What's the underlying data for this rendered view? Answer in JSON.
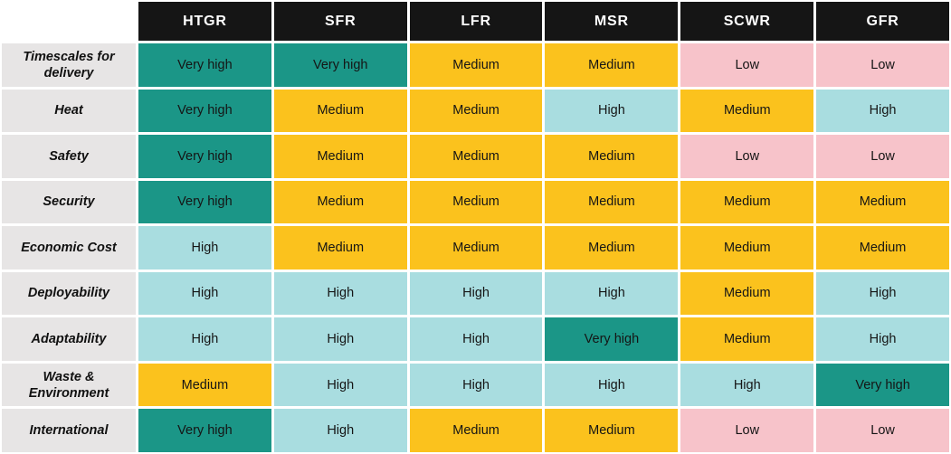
{
  "chart_data": {
    "type": "heatmap",
    "columns": [
      "HTGR",
      "SFR",
      "LFR",
      "MSR",
      "SCWR",
      "GFR"
    ],
    "rows": [
      {
        "label": "Timescales for delivery",
        "values": [
          "Very high",
          "Very high",
          "Medium",
          "Medium",
          "Low",
          "Low"
        ]
      },
      {
        "label": "Heat",
        "values": [
          "Very high",
          "Medium",
          "Medium",
          "High",
          "Medium",
          "High"
        ]
      },
      {
        "label": "Safety",
        "values": [
          "Very high",
          "Medium",
          "Medium",
          "Medium",
          "Low",
          "Low"
        ]
      },
      {
        "label": "Security",
        "values": [
          "Very high",
          "Medium",
          "Medium",
          "Medium",
          "Medium",
          "Medium"
        ]
      },
      {
        "label": "Economic Cost",
        "values": [
          "High",
          "Medium",
          "Medium",
          "Medium",
          "Medium",
          "Medium"
        ]
      },
      {
        "label": "Deployability",
        "values": [
          "High",
          "High",
          "High",
          "High",
          "Medium",
          "High"
        ]
      },
      {
        "label": "Adaptability",
        "values": [
          "High",
          "High",
          "High",
          "Very high",
          "Medium",
          "High"
        ]
      },
      {
        "label": "Waste & Environment",
        "values": [
          "Medium",
          "High",
          "High",
          "High",
          "High",
          "Very high"
        ]
      },
      {
        "label": "International",
        "values": [
          "Very high",
          "High",
          "Medium",
          "Medium",
          "Low",
          "Low"
        ]
      }
    ],
    "rating_scale": [
      "Low",
      "Medium",
      "High",
      "Very high"
    ],
    "rating_colors": {
      "Very high": "#1b9687",
      "High": "#a9dde0",
      "Medium": "#fbc21d",
      "Low": "#f7c3ca"
    },
    "header_bg": "#151515",
    "header_text_color": "#ffffff",
    "row_label_bg": "#e7e5e5",
    "cell_text_color": "#151515",
    "grid_gap_color": "#ffffff",
    "legend_position": "none",
    "grid": true
  }
}
